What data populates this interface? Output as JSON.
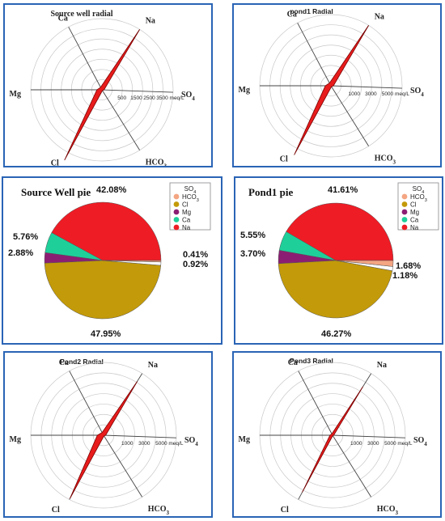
{
  "colors": {
    "border": "#2a64b5",
    "radial_fill": "#e81c1c",
    "radial_stroke": "#7a0000",
    "SO4": "#ffffff",
    "HCO3": "#f4a582",
    "Cl": "#c39a09",
    "Mg": "#8b1e73",
    "Ca": "#1fcf9a",
    "Na": "#ee1c25"
  },
  "chart_data": [
    {
      "type": "radar",
      "title": "Source well radial",
      "axes": [
        "Na",
        "SO4",
        "HCO3",
        "Cl",
        "Mg",
        "Ca"
      ],
      "axis_labels": [
        {
          "main": "Na",
          "sub": ""
        },
        {
          "main": "SO",
          "sub": "4"
        },
        {
          "main": "HCO",
          "sub": "3"
        },
        {
          "main": "Cl",
          "sub": ""
        },
        {
          "main": "Mg",
          "sub": ""
        },
        {
          "main": "Ca",
          "sub": ""
        }
      ],
      "ticks": [
        "500",
        "1500",
        "2500",
        "3500 meq/L"
      ],
      "rmax": 5000,
      "values": [
        5000,
        150,
        60,
        5700,
        350,
        200
      ]
    },
    {
      "type": "radar",
      "title": "pond1 Radial",
      "axes": [
        "Na",
        "SO4",
        "HCO3",
        "Cl",
        "Mg",
        "Ca"
      ],
      "axis_labels": [
        {
          "main": "Na",
          "sub": ""
        },
        {
          "main": "SO",
          "sub": "4"
        },
        {
          "main": "HCO",
          "sub": "3"
        },
        {
          "main": "Cl",
          "sub": ""
        },
        {
          "main": "Mg",
          "sub": ""
        },
        {
          "main": "Ca",
          "sub": ""
        }
      ],
      "ticks": [
        "1000",
        "3000",
        "5000 meq/L"
      ],
      "rmax": 7000,
      "values": [
        7000,
        250,
        100,
        7700,
        550,
        300
      ]
    },
    {
      "type": "pie",
      "title": "Source Well pie",
      "legend_title": {
        "main": "SO",
        "sub": "4"
      },
      "legend": [
        {
          "main": "HCO",
          "sub": "3",
          "key": "HCO3"
        },
        {
          "main": "Cl",
          "sub": "",
          "key": "Cl"
        },
        {
          "main": "Mg",
          "sub": "",
          "key": "Mg"
        },
        {
          "main": "Ca",
          "sub": "",
          "key": "Ca"
        },
        {
          "main": "Na",
          "sub": "",
          "key": "Na"
        }
      ],
      "slices": [
        {
          "key": "Na",
          "value": 42.08,
          "label": "42.08%"
        },
        {
          "key": "Ca",
          "value": 5.76,
          "label": "5.76%"
        },
        {
          "key": "Mg",
          "value": 2.88,
          "label": "2.88%"
        },
        {
          "key": "Cl",
          "value": 47.95,
          "label": "47.95%"
        },
        {
          "key": "SO4",
          "value": 0.92,
          "label": "0.92%"
        },
        {
          "key": "HCO3",
          "value": 0.41,
          "label": "0.41%"
        }
      ]
    },
    {
      "type": "pie",
      "title": "Pond1 pie",
      "legend_title": {
        "main": "SO",
        "sub": "4"
      },
      "legend": [
        {
          "main": "HCO",
          "sub": "3",
          "key": "HCO3"
        },
        {
          "main": "Cl",
          "sub": "",
          "key": "Cl"
        },
        {
          "main": "Mg",
          "sub": "",
          "key": "Mg"
        },
        {
          "main": "Ca",
          "sub": "",
          "key": "Ca"
        },
        {
          "main": "Na",
          "sub": "",
          "key": "Na"
        }
      ],
      "slices": [
        {
          "key": "Na",
          "value": 41.61,
          "label": "41.61%"
        },
        {
          "key": "Ca",
          "value": 5.55,
          "label": "5.55%"
        },
        {
          "key": "Mg",
          "value": 3.7,
          "label": "3.70%"
        },
        {
          "key": "Cl",
          "value": 46.27,
          "label": "46.27%"
        },
        {
          "key": "SO4",
          "value": 1.18,
          "label": "1.18%"
        },
        {
          "key": "HCO3",
          "value": 1.68,
          "label": "1.68%"
        }
      ]
    },
    {
      "type": "radar",
      "title": "Pond2 Radial",
      "axes": [
        "Na",
        "SO4",
        "HCO3",
        "Cl",
        "Mg",
        "Ca"
      ],
      "axis_labels": [
        {
          "main": "Na",
          "sub": ""
        },
        {
          "main": "SO",
          "sub": "4"
        },
        {
          "main": "HCO",
          "sub": "3"
        },
        {
          "main": "Cl",
          "sub": ""
        },
        {
          "main": "Mg",
          "sub": ""
        },
        {
          "main": "Ca",
          "sub": ""
        }
      ],
      "ticks": [
        "1000",
        "3000",
        "5000 meq/L"
      ],
      "rmax": 7000,
      "values": [
        6100,
        200,
        80,
        6900,
        600,
        300
      ]
    },
    {
      "type": "radar",
      "title": "Pond3 Radial",
      "axes": [
        "Na",
        "SO4",
        "HCO3",
        "Cl",
        "Mg",
        "Ca"
      ],
      "axis_labels": [
        {
          "main": "Na",
          "sub": ""
        },
        {
          "main": "SO",
          "sub": "4"
        },
        {
          "main": "HCO",
          "sub": "3"
        },
        {
          "main": "Cl",
          "sub": ""
        },
        {
          "main": "Mg",
          "sub": ""
        },
        {
          "main": "Ca",
          "sub": ""
        }
      ],
      "ticks": [
        "1000",
        "3000",
        "5000 meq/L"
      ],
      "rmax": 7000,
      "values": [
        5500,
        120,
        50,
        6200,
        250,
        150
      ]
    }
  ]
}
